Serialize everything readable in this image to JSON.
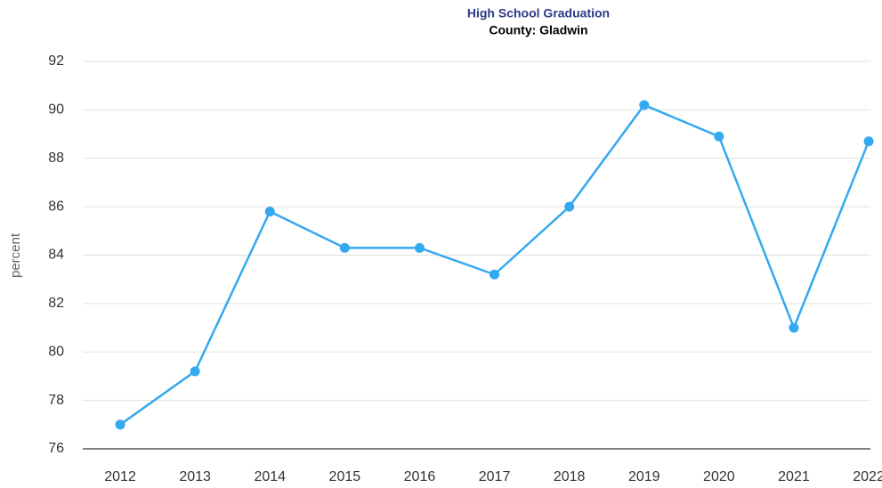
{
  "chart_data": {
    "type": "line",
    "title": "High School Graduation",
    "subtitle": "County: Gladwin",
    "y_label": "percent",
    "categories": [
      "2012",
      "2013",
      "2014",
      "2015",
      "2016",
      "2017",
      "2018",
      "2019",
      "2020",
      "2021",
      "2022"
    ],
    "series": [
      {
        "name": "Gladwin",
        "color": "#34a9f0",
        "values": [
          77.0,
          79.2,
          85.8,
          84.3,
          84.3,
          83.2,
          86.0,
          90.2,
          88.9,
          81.0,
          88.7
        ]
      }
    ],
    "ylim": [
      76,
      92
    ],
    "yticks": [
      76,
      78,
      80,
      82,
      84,
      86,
      88,
      90,
      92
    ],
    "grid": true
  }
}
